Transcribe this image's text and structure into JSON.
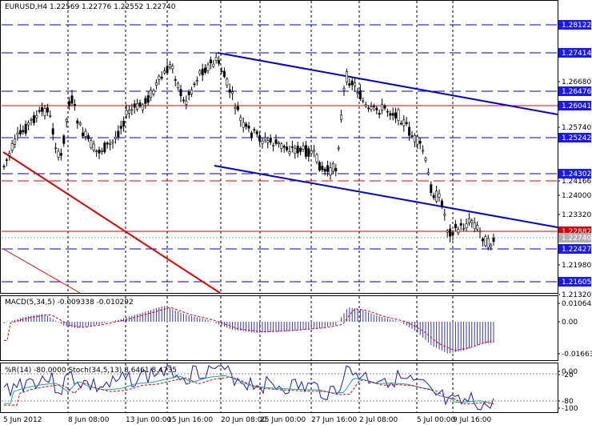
{
  "header": {
    "title": "EURUSD,H4  1.22569 1.22776 1.22552 1.22740"
  },
  "price_axis": {
    "labels": [
      "1.28122",
      "1.27414",
      "1.26680",
      "1.26476",
      "1.26041",
      "1.25740",
      "1.25242",
      "1.24302",
      "1.24166",
      "1.24000",
      "1.23320",
      "1.22882",
      "1.22740",
      "1.22427",
      "1.21980",
      "1.21605",
      "1.21320"
    ],
    "highlighted": [
      "1.28122",
      "1.27414",
      "1.26476",
      "1.26041",
      "1.25242",
      "1.24302",
      "1.22882",
      "1.22740",
      "1.22427",
      "1.21605"
    ]
  },
  "macd": {
    "label": "MACD(5,34,5) -0.009338 -0.010292",
    "axis": [
      "0.010642",
      "0.00",
      "-0.01663"
    ]
  },
  "osc": {
    "label": "%R(14) -80.0000  Stoch(34,5,13) 8.6461 8.4735",
    "axis": [
      "0.00",
      "-20",
      "-80",
      "-100"
    ]
  },
  "time_axis": [
    "5 Jun 2012",
    "8 Jun 08:00",
    "13 Jun 00:00",
    "15 Jun 16:00",
    "20 Jun 08:00",
    "25 Jun 00:00",
    "27 Jun 16:00",
    "2 Jul 08:00",
    "5 Jul 00:00",
    "9 Jul 16:00"
  ],
  "colors": {
    "blue_line": "#0000cc",
    "red_line": "#dd0000",
    "candle": "#000000",
    "macd_hist": "#3333cc",
    "signal": "#dd0000"
  }
}
